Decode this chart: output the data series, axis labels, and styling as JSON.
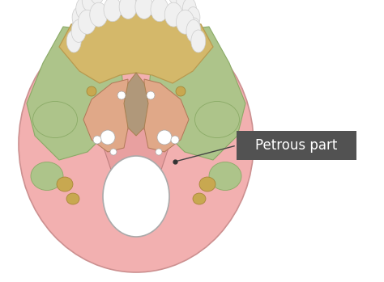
{
  "bg_color": "#ffffff",
  "label_text": "Petrous part",
  "label_box_color": "#525252",
  "label_text_color": "#ffffff",
  "maxilla_color": "#d4b86a",
  "maxilla_edge": "#b89a50",
  "temporal_color": "#adc48a",
  "temporal_edge": "#8aaa66",
  "occipital_color": "#f2b0b0",
  "occipital_edge": "#cc9090",
  "sphenoid_color": "#c8a070",
  "sphenoid_edge": "#a88050",
  "palatine_color": "#b8c898",
  "palatine_edge": "#90a878",
  "vomer_color": "#b0987a",
  "vomer_edge": "#907060",
  "basioccipital_color": "#d4b090",
  "teeth_color": "#f0f0f0",
  "teeth_edge": "#cccccc",
  "foramen_color": "#ffffff",
  "foramen_edge": "#aaaaaa",
  "gold_bump": "#c8a850",
  "pink_basilar": "#e8a0a0",
  "annotation_dot_color": "#333333",
  "line_color": "#444444"
}
